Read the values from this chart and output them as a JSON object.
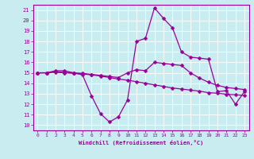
{
  "xlabel": "Windchill (Refroidissement éolien,°C)",
  "bg_color": "#c8ecf0",
  "line_color": "#990099",
  "markersize": 2.5,
  "linewidth": 0.9,
  "xlim": [
    -0.5,
    23.5
  ],
  "ylim": [
    9.5,
    21.5
  ],
  "yticks": [
    10,
    11,
    12,
    13,
    14,
    15,
    16,
    17,
    18,
    19,
    20,
    21
  ],
  "xticks": [
    0,
    1,
    2,
    3,
    4,
    5,
    6,
    7,
    8,
    9,
    10,
    11,
    12,
    13,
    14,
    15,
    16,
    17,
    18,
    19,
    20,
    21,
    22,
    23
  ],
  "series1_x": [
    0,
    1,
    2,
    3,
    4,
    5,
    6,
    7,
    8,
    9,
    10,
    11,
    12,
    13,
    14,
    15,
    16,
    17,
    18,
    19,
    20,
    21,
    22,
    23
  ],
  "series1_y": [
    15.0,
    15.0,
    15.2,
    15.2,
    15.0,
    14.8,
    12.8,
    11.1,
    10.3,
    10.8,
    12.4,
    18.0,
    18.3,
    21.2,
    20.2,
    19.3,
    17.0,
    16.5,
    16.4,
    16.3,
    13.2,
    13.3,
    12.0,
    13.2
  ],
  "series2_x": [
    0,
    1,
    2,
    3,
    4,
    5,
    6,
    7,
    8,
    9,
    10,
    11,
    12,
    13,
    14,
    15,
    16,
    17,
    18,
    19,
    20,
    21,
    22,
    23
  ],
  "series2_y": [
    15.0,
    15.0,
    15.1,
    15.05,
    15.0,
    14.95,
    14.85,
    14.75,
    14.65,
    14.55,
    15.0,
    15.3,
    15.2,
    16.0,
    15.9,
    15.8,
    15.7,
    15.0,
    14.5,
    14.1,
    13.8,
    13.6,
    13.5,
    13.4
  ],
  "series3_x": [
    0,
    1,
    2,
    3,
    4,
    5,
    6,
    7,
    8,
    9,
    10,
    11,
    12,
    13,
    14,
    15,
    16,
    17,
    18,
    19,
    20,
    21,
    22,
    23
  ],
  "series3_y": [
    15.0,
    15.0,
    15.05,
    15.0,
    14.95,
    14.9,
    14.8,
    14.7,
    14.55,
    14.4,
    14.3,
    14.15,
    14.0,
    13.85,
    13.7,
    13.55,
    13.45,
    13.35,
    13.25,
    13.1,
    13.05,
    12.95,
    12.9,
    12.85
  ]
}
